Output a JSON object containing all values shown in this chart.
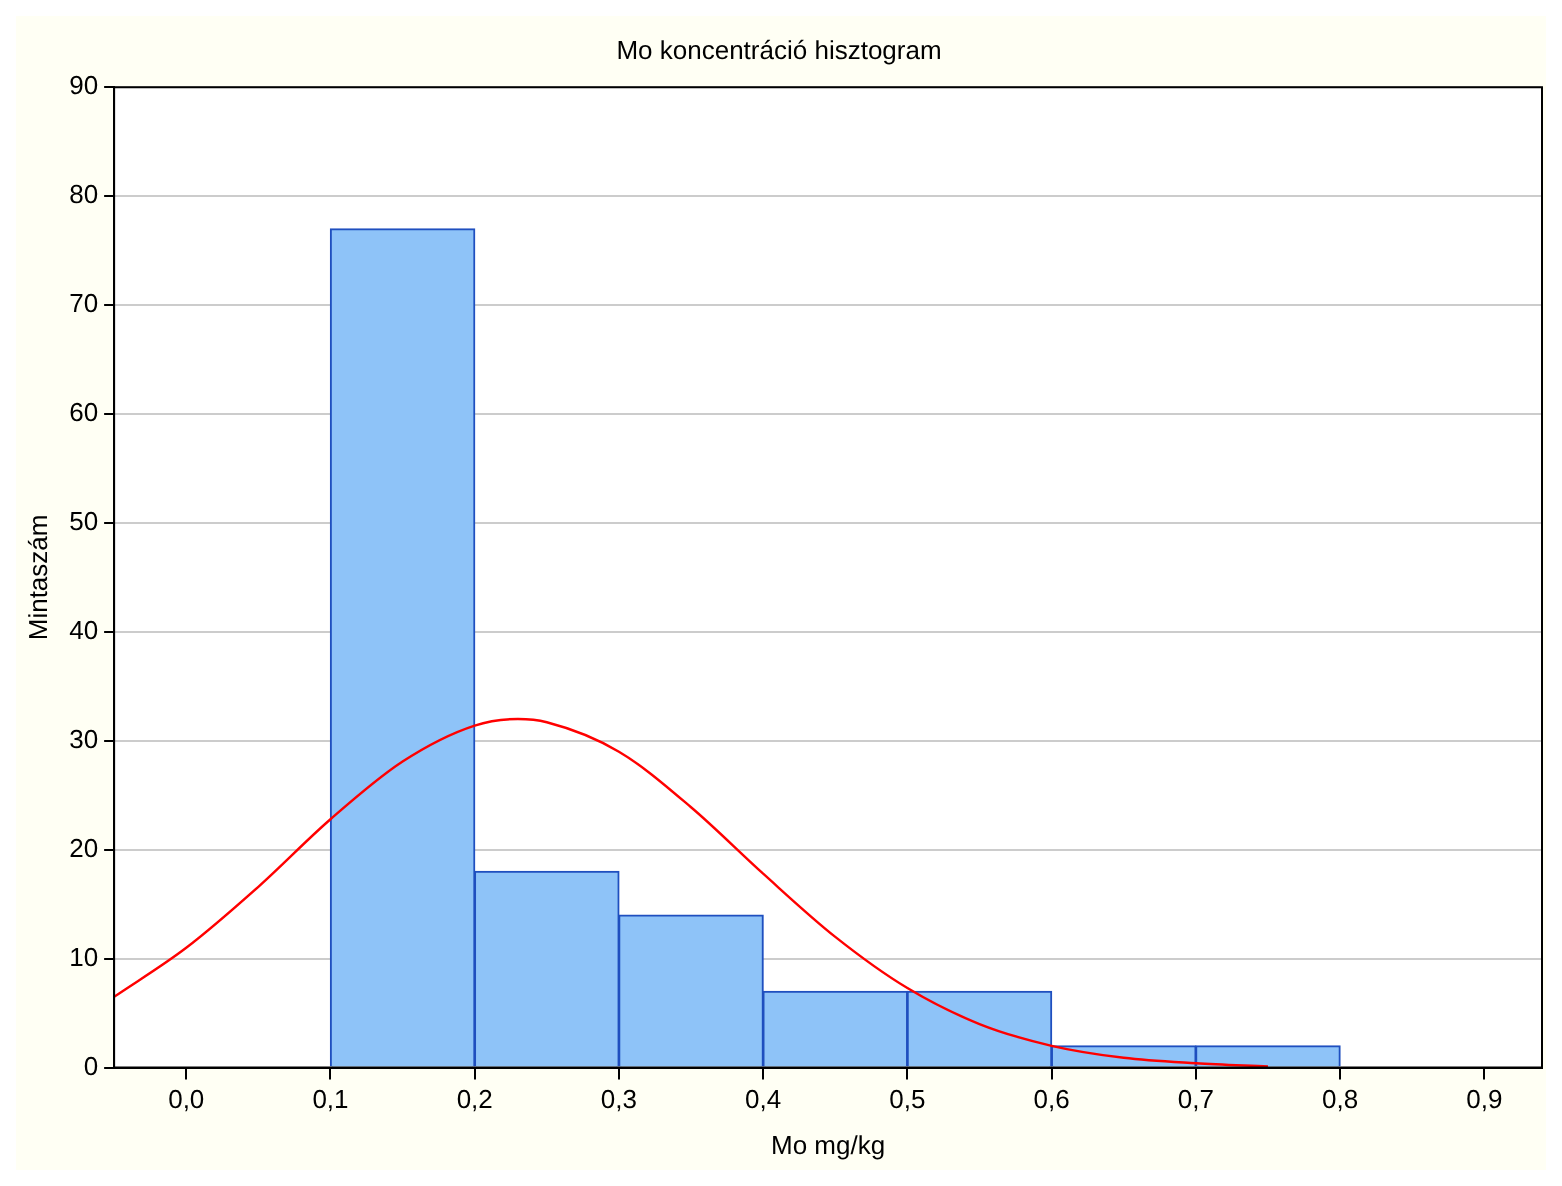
{
  "chart_data": {
    "type": "histogram",
    "title": "Mo koncentráció hisztogram",
    "xlabel": "Mo mg/kg",
    "ylabel": "Mintaszám",
    "bins": [
      0.1,
      0.2,
      0.3,
      0.4,
      0.5,
      0.6,
      0.7,
      0.8
    ],
    "values": [
      77,
      18,
      14,
      7,
      7,
      2,
      2
    ],
    "color": "#8ec3f8",
    "series": [
      {
        "type": "line",
        "color": "#ff0000",
        "x": [
          -0.05,
          0,
          0.05,
          0.1,
          0.15,
          0.2,
          0.23,
          0.25,
          0.3,
          0.35,
          0.4,
          0.45,
          0.5,
          0.55,
          0.6,
          0.65,
          0.7,
          0.75
        ],
        "values": [
          6.5,
          11.0,
          16.6,
          22.8,
          28.1,
          31.4,
          32,
          31.7,
          29.0,
          23.9,
          17.8,
          12.0,
          7.3,
          4.0,
          2.0,
          0.9,
          0.4,
          0.1
        ]
      }
    ],
    "xlim": [
      -0.05,
      0.94
    ],
    "xticks": [
      {
        "value": 0,
        "label": "0,0"
      },
      {
        "value": 0.1,
        "label": "0,1"
      },
      {
        "value": 0.2,
        "label": "0,2"
      },
      {
        "value": 0.3,
        "label": "0,3"
      },
      {
        "value": 0.4,
        "label": "0,4"
      },
      {
        "value": 0.5,
        "label": "0,5"
      },
      {
        "value": 0.6,
        "label": "0,6"
      },
      {
        "value": 0.7,
        "label": "0,7"
      },
      {
        "value": 0.8,
        "label": "0,8"
      },
      {
        "value": 0.9,
        "label": "0,9"
      }
    ],
    "ylim": [
      0,
      90
    ],
    "yticks": [
      0,
      10,
      20,
      30,
      40,
      50,
      60,
      70,
      80,
      90
    ],
    "grid": "y",
    "legend": false,
    "marker": "none"
  }
}
